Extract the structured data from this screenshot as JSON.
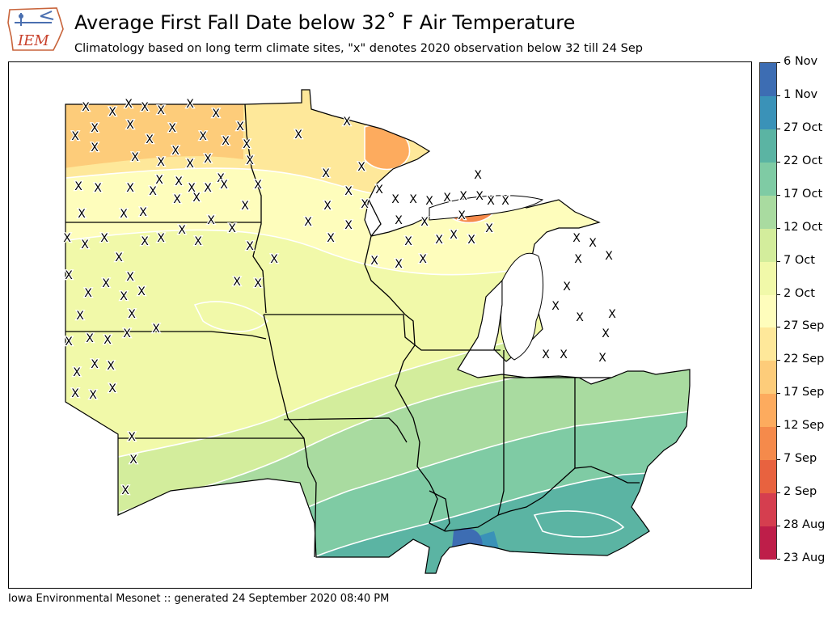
{
  "header": {
    "title": "Average First Fall Date below 32˚ F Air Temperature",
    "subtitle": "Climatology based on long term climate sites, \"x\" denotes 2020 observation below 32 till 24 Sep",
    "logo_text": "IEM"
  },
  "footer": {
    "text": "Iowa Environmental Mesonet :: generated 24 September 2020 08:40 PM"
  },
  "map": {
    "marker_glyph": "X",
    "colors": {
      "ocean": "#ffffff",
      "state_border": "#000000",
      "contour": "#ffffff"
    }
  },
  "colorbar": {
    "labels": [
      "6 Nov",
      "1 Nov",
      "27 Oct",
      "22 Oct",
      "17 Oct",
      "12 Oct",
      "7 Oct",
      "2 Oct",
      "27 Sep",
      "22 Sep",
      "17 Sep",
      "12 Sep",
      "7 Sep",
      "2 Sep",
      "28 Aug",
      "23 Aug"
    ],
    "colors": [
      "#3d6db3",
      "#3a92b8",
      "#5bb4a3",
      "#7fcba4",
      "#a9dba0",
      "#d3ed9c",
      "#f1f9a9",
      "#fefdbc",
      "#fee89a",
      "#fdcc7a",
      "#fdab5e",
      "#f58a4b",
      "#e8623f",
      "#d53e4f",
      "#be1e49"
    ]
  }
}
